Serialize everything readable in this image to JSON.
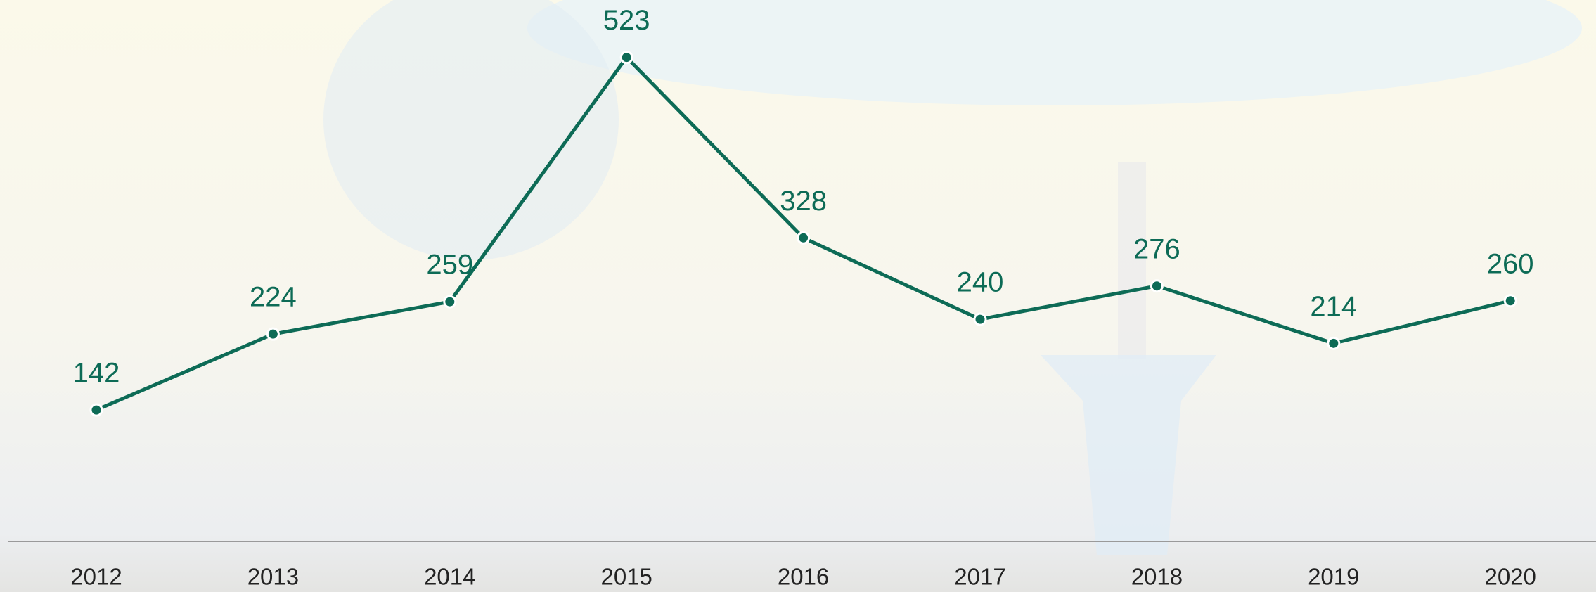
{
  "chart_data": {
    "type": "line",
    "categories": [
      "2012",
      "2013",
      "2014",
      "2015",
      "2016",
      "2017",
      "2018",
      "2019",
      "2020"
    ],
    "series": [
      {
        "color": "#0d6b56",
        "values": [
          142,
          224,
          259,
          523,
          328,
          240,
          276,
          214,
          260
        ]
      }
    ],
    "ylim": [
      0,
      585
    ]
  }
}
